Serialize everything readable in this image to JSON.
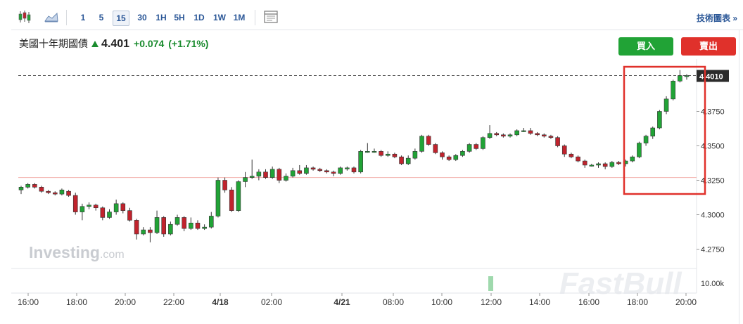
{
  "toolbar": {
    "intervals": [
      "1",
      "5",
      "15",
      "30",
      "1H",
      "5H",
      "1D",
      "1W",
      "1M"
    ],
    "selected_interval": "15",
    "tech_chart_link": "技術圖表 »"
  },
  "instrument": {
    "name": "美國十年期國債",
    "price": "4.401",
    "change": "+0.074",
    "change_pct": "(+1.71%)",
    "direction": "up"
  },
  "buttons": {
    "buy": "買入",
    "sell": "賣出"
  },
  "watermarks": {
    "investing": "Investing.com",
    "fastbull": "FastBull"
  },
  "colors": {
    "up": "#21a336",
    "down": "#c0232d",
    "accent": "#2b5797",
    "highlight_box": "#e0312b"
  },
  "chart_data": {
    "type": "candlestick",
    "y_ticks": [
      "4.2750",
      "4.3000",
      "4.3250",
      "4.3500",
      "4.3750"
    ],
    "ylim": [
      4.262,
      4.413
    ],
    "current_price_label": "4.4010",
    "current_price": 4.401,
    "reference_price": 4.327,
    "volume_label": "10.00k",
    "x_ticks": [
      "16:00",
      "18:00",
      "20:00",
      "22:00",
      "4/18",
      "02:00",
      "4/21",
      "08:00",
      "10:00",
      "12:00",
      "14:00",
      "16:00",
      "18:00",
      "20:00"
    ],
    "highlight_box": "last candles, 17:30 – 20:00",
    "candles": [
      [
        4.318,
        4.32,
        4.315,
        4.321
      ],
      [
        4.32,
        4.322,
        4.319,
        4.323
      ],
      [
        4.322,
        4.32,
        4.319,
        4.323
      ],
      [
        4.32,
        4.317,
        4.316,
        4.321
      ],
      [
        4.317,
        4.316,
        4.315,
        4.318
      ],
      [
        4.316,
        4.315,
        4.314,
        4.317
      ],
      [
        4.315,
        4.318,
        4.314,
        4.319
      ],
      [
        4.317,
        4.314,
        4.313,
        4.318
      ],
      [
        4.314,
        4.302,
        4.3,
        4.316
      ],
      [
        4.302,
        4.306,
        4.296,
        4.308
      ],
      [
        4.306,
        4.307,
        4.304,
        4.309
      ],
      [
        4.307,
        4.305,
        4.303,
        4.308
      ],
      [
        4.305,
        4.298,
        4.296,
        4.306
      ],
      [
        4.298,
        4.302,
        4.297,
        4.304
      ],
      [
        4.302,
        4.308,
        4.3,
        4.311
      ],
      [
        4.308,
        4.303,
        4.301,
        4.309
      ],
      [
        4.303,
        4.296,
        4.295,
        4.305
      ],
      [
        4.296,
        4.286,
        4.282,
        4.297
      ],
      [
        4.286,
        4.289,
        4.285,
        4.291
      ],
      [
        4.289,
        4.287,
        4.28,
        4.291
      ],
      [
        4.287,
        4.298,
        4.286,
        4.303
      ],
      [
        4.298,
        4.286,
        4.284,
        4.299
      ],
      [
        4.286,
        4.293,
        4.285,
        4.295
      ],
      [
        4.293,
        4.298,
        4.292,
        4.3
      ],
      [
        4.298,
        4.29,
        4.288,
        4.299
      ],
      [
        4.29,
        4.294,
        4.289,
        4.298
      ],
      [
        4.294,
        4.29,
        4.289,
        4.296
      ],
      [
        4.29,
        4.291,
        4.289,
        4.293
      ],
      [
        4.291,
        4.299,
        4.29,
        4.302
      ],
      [
        4.299,
        4.325,
        4.298,
        4.327
      ],
      [
        4.325,
        4.318,
        4.316,
        4.327
      ],
      [
        4.318,
        4.303,
        4.302,
        4.32
      ],
      [
        4.303,
        4.324,
        4.302,
        4.325
      ],
      [
        4.324,
        4.327,
        4.32,
        4.331
      ],
      [
        4.327,
        4.328,
        4.326,
        4.34
      ],
      [
        4.328,
        4.331,
        4.325,
        4.333
      ],
      [
        4.331,
        4.327,
        4.326,
        4.333
      ],
      [
        4.327,
        4.333,
        4.326,
        4.335
      ],
      [
        4.333,
        4.325,
        4.323,
        4.334
      ],
      [
        4.325,
        4.328,
        4.324,
        4.33
      ],
      [
        4.328,
        4.332,
        4.327,
        4.334
      ],
      [
        4.332,
        4.33,
        4.329,
        4.336
      ],
      [
        4.33,
        4.334,
        4.329,
        4.336
      ],
      [
        4.334,
        4.333,
        4.332,
        4.335
      ],
      [
        4.333,
        4.332,
        4.331,
        4.334
      ],
      [
        4.332,
        4.331,
        4.33,
        4.333
      ],
      [
        4.331,
        4.33,
        4.328,
        4.332
      ],
      [
        4.33,
        4.334,
        4.329,
        4.335
      ],
      [
        4.334,
        4.334,
        4.332,
        4.335
      ],
      [
        4.334,
        4.331,
        4.33,
        4.335
      ],
      [
        4.331,
        4.346,
        4.33,
        4.347
      ],
      [
        4.346,
        4.346,
        4.345,
        4.352
      ],
      [
        4.346,
        4.346,
        4.345,
        4.348
      ],
      [
        4.346,
        4.343,
        4.342,
        4.347
      ],
      [
        4.343,
        4.344,
        4.342,
        4.346
      ],
      [
        4.344,
        4.342,
        4.341,
        4.345
      ],
      [
        4.342,
        4.337,
        4.336,
        4.343
      ],
      [
        4.337,
        4.341,
        4.336,
        4.343
      ],
      [
        4.341,
        4.346,
        4.34,
        4.348
      ],
      [
        4.346,
        4.357,
        4.345,
        4.358
      ],
      [
        4.357,
        4.351,
        4.35,
        4.358
      ],
      [
        4.351,
        4.345,
        4.344,
        4.352
      ],
      [
        4.345,
        4.342,
        4.34,
        4.346
      ],
      [
        4.342,
        4.34,
        4.339,
        4.343
      ],
      [
        4.34,
        4.343,
        4.339,
        4.344
      ],
      [
        4.343,
        4.346,
        4.342,
        4.347
      ],
      [
        4.346,
        4.351,
        4.345,
        4.352
      ],
      [
        4.351,
        4.348,
        4.347,
        4.352
      ],
      [
        4.348,
        4.356,
        4.347,
        4.357
      ],
      [
        4.356,
        4.359,
        4.355,
        4.365
      ],
      [
        4.359,
        4.358,
        4.357,
        4.36
      ],
      [
        4.358,
        4.357,
        4.356,
        4.359
      ],
      [
        4.357,
        4.358,
        4.356,
        4.359
      ],
      [
        4.358,
        4.361,
        4.357,
        4.362
      ],
      [
        4.361,
        4.361,
        4.36,
        4.363
      ],
      [
        4.361,
        4.359,
        4.358,
        4.363
      ],
      [
        4.359,
        4.358,
        4.357,
        4.36
      ],
      [
        4.358,
        4.357,
        4.356,
        4.359
      ],
      [
        4.357,
        4.356,
        4.355,
        4.358
      ],
      [
        4.356,
        4.35,
        4.349,
        4.357
      ],
      [
        4.35,
        4.344,
        4.342,
        4.351
      ],
      [
        4.344,
        4.342,
        4.341,
        4.345
      ],
      [
        4.342,
        4.339,
        4.338,
        4.343
      ],
      [
        4.339,
        4.336,
        4.334,
        4.34
      ],
      [
        4.336,
        4.336,
        4.335,
        4.337
      ],
      [
        4.336,
        4.337,
        4.334,
        4.338
      ],
      [
        4.337,
        4.335,
        4.333,
        4.338
      ],
      [
        4.335,
        4.338,
        4.334,
        4.339
      ],
      [
        4.338,
        4.337,
        4.336,
        4.339
      ],
      [
        4.337,
        4.339,
        4.335,
        4.34
      ],
      [
        4.339,
        4.342,
        4.338,
        4.343
      ],
      [
        4.342,
        4.352,
        4.341,
        4.353
      ],
      [
        4.352,
        4.357,
        4.35,
        4.358
      ],
      [
        4.357,
        4.363,
        4.355,
        4.364
      ],
      [
        4.363,
        4.375,
        4.362,
        4.376
      ],
      [
        4.375,
        4.384,
        4.373,
        4.386
      ],
      [
        4.384,
        4.397,
        4.383,
        4.398
      ],
      [
        4.397,
        4.401,
        4.396,
        4.405
      ],
      [
        4.401,
        4.401,
        4.398,
        4.402
      ]
    ]
  }
}
